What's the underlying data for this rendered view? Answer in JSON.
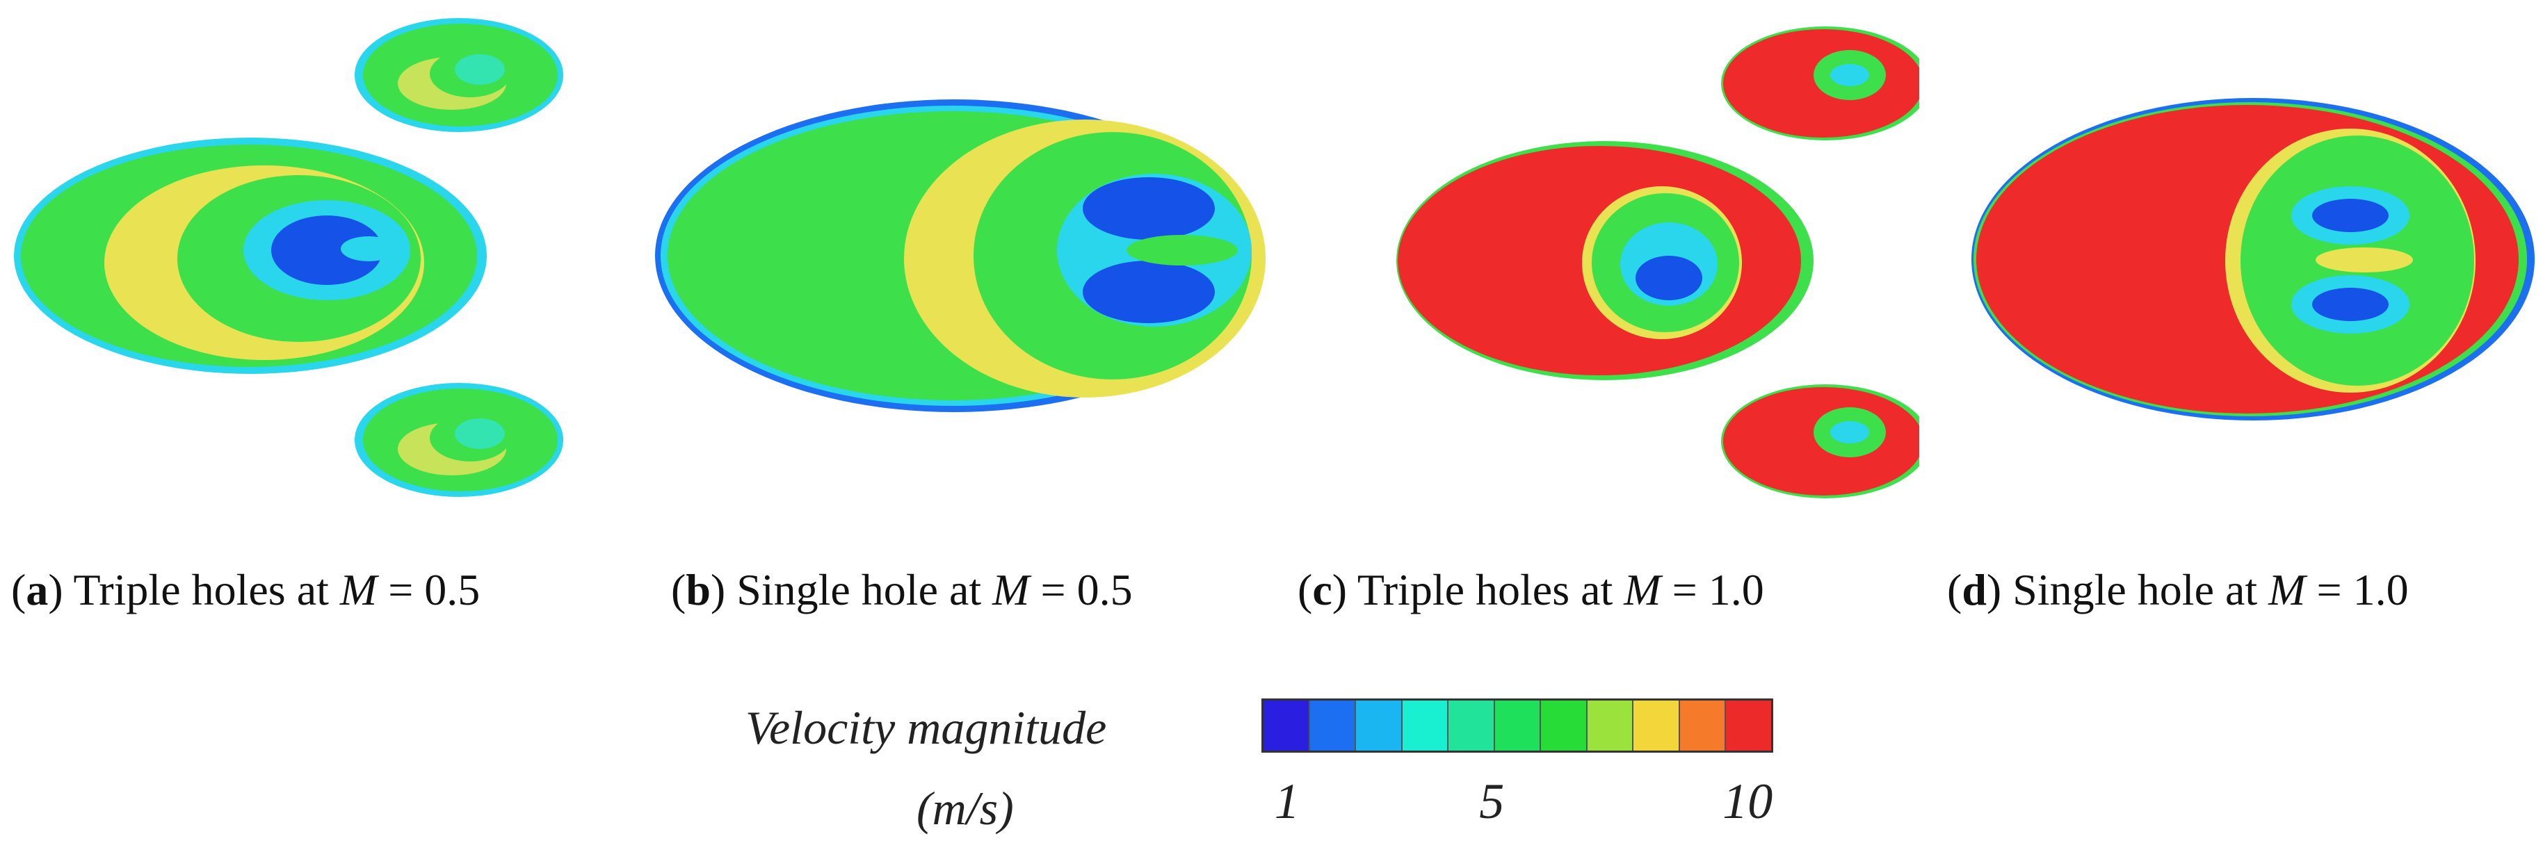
{
  "panels": [
    {
      "id": "a",
      "letter": "a",
      "desc": "Triple holes at",
      "var": "M",
      "rest": " = 0.5"
    },
    {
      "id": "b",
      "letter": "b",
      "desc": "Single hole at",
      "var": "M",
      "rest": " = 0.5"
    },
    {
      "id": "c",
      "letter": "c",
      "desc": "Triple holes at",
      "var": "M",
      "rest": " = 1.0"
    },
    {
      "id": "d",
      "letter": "d",
      "desc": "Single hole at",
      "var": "M",
      "rest": " = 1.0"
    }
  ],
  "legend": {
    "title": "Velocity magnitude",
    "unit": "(m/s)",
    "ticks": [
      {
        "label": "1",
        "value": 1
      },
      {
        "label": "5",
        "value": 5
      },
      {
        "label": "10",
        "value": 10
      }
    ],
    "range": [
      0.5,
      10.5
    ],
    "colors": [
      "#2a1ee0",
      "#1c6ff0",
      "#19b6f2",
      "#19f0d2",
      "#21e39a",
      "#1fe05a",
      "#27dc36",
      "#9be33c",
      "#f3d63a",
      "#f57a2a",
      "#ec2a2a"
    ]
  },
  "contour_colors": {
    "blue": "#1452e8",
    "cyan": "#2ad6ec",
    "green": "#3de04a",
    "yellow": "#e9e353",
    "red": "#ee2a2a"
  }
}
